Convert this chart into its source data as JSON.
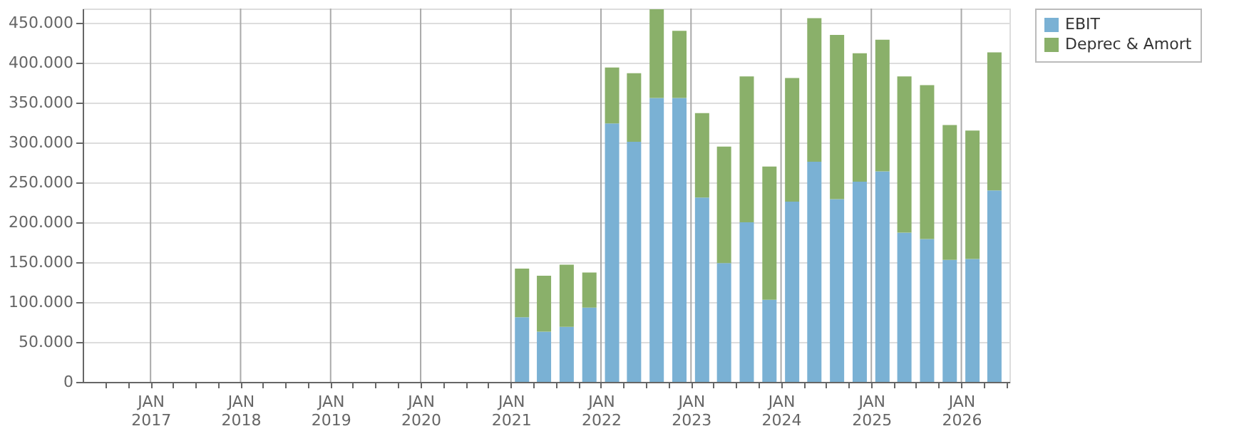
{
  "chart_data": {
    "type": "bar",
    "stacked": true,
    "x": [
      "2021-02-15",
      "2021-05-15",
      "2021-08-15",
      "2021-11-15",
      "2022-02-15",
      "2022-05-15",
      "2022-08-15",
      "2022-11-15",
      "2023-02-15",
      "2023-05-15",
      "2023-08-15",
      "2023-11-15",
      "2024-02-15",
      "2024-05-15",
      "2024-08-15",
      "2024-11-15",
      "2025-02-15",
      "2025-05-15",
      "2025-08-15",
      "2025-11-15",
      "2026-02-15",
      "2026-05-15"
    ],
    "series": [
      {
        "name": "EBIT",
        "color": "#7ab1d4",
        "values": [
          81000,
          63000,
          69000,
          93000,
          324000,
          301000,
          356000,
          356000,
          231000,
          149000,
          200000,
          103000,
          226000,
          276000,
          229000,
          251000,
          264000,
          187000,
          179000,
          153000,
          154000,
          240000
        ]
      },
      {
        "name": "Deprec & Amort",
        "color": "#8ab06a",
        "values": [
          61000,
          70000,
          78000,
          44000,
          70000,
          86000,
          111000,
          84000,
          106000,
          146000,
          183000,
          167000,
          155000,
          180000,
          206000,
          161000,
          165000,
          196000,
          193000,
          169000,
          161000,
          173000
        ]
      }
    ],
    "xlim": [
      "2016-04-01",
      "2026-07-15"
    ],
    "xticks": [
      {
        "value": "2016-07-01",
        "label": null
      },
      {
        "value": "2016-10-01",
        "label": null
      },
      {
        "value": "2017-01-01",
        "label": "JAN 2017"
      },
      {
        "value": "2017-04-01",
        "label": null
      },
      {
        "value": "2017-07-01",
        "label": null
      },
      {
        "value": "2017-10-01",
        "label": null
      },
      {
        "value": "2018-01-01",
        "label": "JAN 2018"
      },
      {
        "value": "2018-04-01",
        "label": null
      },
      {
        "value": "2018-07-01",
        "label": null
      },
      {
        "value": "2018-10-01",
        "label": null
      },
      {
        "value": "2019-01-01",
        "label": "JAN 2019"
      },
      {
        "value": "2019-04-01",
        "label": null
      },
      {
        "value": "2019-07-01",
        "label": null
      },
      {
        "value": "2019-10-01",
        "label": null
      },
      {
        "value": "2020-01-01",
        "label": "JAN 2020"
      },
      {
        "value": "2020-04-01",
        "label": null
      },
      {
        "value": "2020-07-01",
        "label": null
      },
      {
        "value": "2020-10-01",
        "label": null
      },
      {
        "value": "2021-01-01",
        "label": "JAN 2021"
      },
      {
        "value": "2021-04-01",
        "label": null
      },
      {
        "value": "2021-07-01",
        "label": null
      },
      {
        "value": "2021-10-01",
        "label": null
      },
      {
        "value": "2022-01-01",
        "label": "JAN 2022"
      },
      {
        "value": "2022-04-01",
        "label": null
      },
      {
        "value": "2022-07-01",
        "label": null
      },
      {
        "value": "2022-10-01",
        "label": null
      },
      {
        "value": "2023-01-01",
        "label": "JAN 2023"
      },
      {
        "value": "2023-04-01",
        "label": null
      },
      {
        "value": "2023-07-01",
        "label": null
      },
      {
        "value": "2023-10-01",
        "label": null
      },
      {
        "value": "2024-01-01",
        "label": "JAN 2024"
      },
      {
        "value": "2024-04-01",
        "label": null
      },
      {
        "value": "2024-07-01",
        "label": null
      },
      {
        "value": "2024-10-01",
        "label": null
      },
      {
        "value": "2025-01-01",
        "label": "JAN 2025"
      },
      {
        "value": "2025-04-01",
        "label": null
      },
      {
        "value": "2025-07-01",
        "label": null
      },
      {
        "value": "2025-10-01",
        "label": null
      },
      {
        "value": "2026-01-01",
        "label": "JAN 2026"
      },
      {
        "value": "2026-04-01",
        "label": null
      },
      {
        "value": "2026-07-01",
        "label": null
      }
    ],
    "ylim": [
      0,
      468000
    ],
    "yticks": [
      0,
      {
        "value": 50000,
        "label": "50.000"
      },
      {
        "value": 100000,
        "label": "100.000"
      },
      {
        "value": 150000,
        "label": "150.000"
      },
      {
        "value": 200000,
        "label": "200.000"
      },
      {
        "value": 250000,
        "label": "250.000"
      },
      {
        "value": 300000,
        "label": "300.000"
      },
      {
        "value": 350000,
        "label": "350.000"
      },
      {
        "value": 400000,
        "label": "400.000"
      },
      {
        "value": 450000,
        "label": "450.000"
      }
    ],
    "grid": true,
    "legend": "top right"
  }
}
